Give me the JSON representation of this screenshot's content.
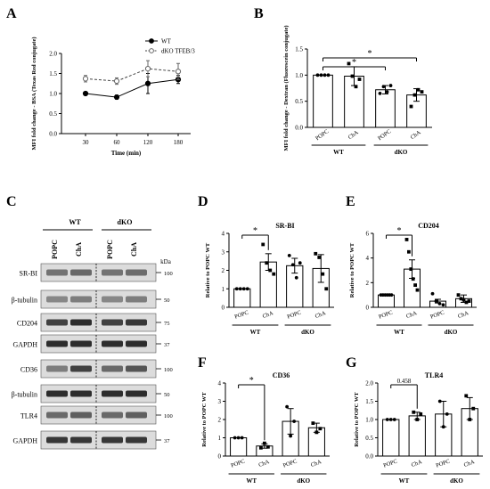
{
  "panel_letters": {
    "A": "A",
    "B": "B",
    "C": "C",
    "D": "D",
    "E": "E",
    "F": "F",
    "G": "G"
  },
  "blot": {
    "groups": [
      "WT",
      "dKO"
    ],
    "lanes": [
      "POPC",
      "ChA",
      "POPC",
      "ChA"
    ],
    "kda_label": "kDa",
    "rows": [
      {
        "label": "SR-BI",
        "kda": "100",
        "intensity": [
          0.55,
          0.6,
          0.55,
          0.58
        ]
      },
      {
        "label": "β-tubulin",
        "kda": "50",
        "intensity": [
          0.45,
          0.5,
          0.45,
          0.5
        ]
      },
      {
        "label": "CD204",
        "kda": "75",
        "intensity": [
          0.8,
          0.9,
          0.8,
          0.85
        ]
      },
      {
        "label": "GAPDH",
        "kda": "37",
        "intensity": [
          0.9,
          0.9,
          0.9,
          0.9
        ]
      },
      {
        "label": "CD36",
        "kda": "100",
        "intensity": [
          0.5,
          0.8,
          0.6,
          0.7
        ]
      },
      {
        "label": "β-tubulin",
        "kda": "50",
        "intensity": [
          0.9,
          0.9,
          0.9,
          0.9
        ]
      },
      {
        "label": "TLR4",
        "kda": "100",
        "intensity": [
          0.6,
          0.65,
          0.6,
          0.65
        ]
      },
      {
        "label": "GAPDH",
        "kda": "37",
        "intensity": [
          0.85,
          0.85,
          0.85,
          0.85
        ]
      }
    ]
  },
  "chart_data": [
    {
      "panel": "A",
      "type": "line",
      "xlabel": "Time (min)",
      "ylabel": "MFI fold change - BSA (Texas Red conjugate)",
      "x": [
        30,
        60,
        120,
        180
      ],
      "ylim": [
        0.0,
        2.0
      ],
      "yticks": [
        "0.0",
        "0.5",
        "1.0",
        "1.5",
        "2.0"
      ],
      "series": [
        {
          "name": "WT",
          "values": [
            1.0,
            0.91,
            1.25,
            1.35
          ],
          "err": [
            0.03,
            0.05,
            0.25,
            0.1
          ],
          "style": "solid",
          "marker": "filled"
        },
        {
          "name": "dKO TFEB/3",
          "values": [
            1.37,
            1.31,
            1.62,
            1.55
          ],
          "err": [
            0.08,
            0.08,
            0.2,
            0.2
          ],
          "style": "dashed",
          "marker": "open"
        }
      ],
      "legend": "top-right"
    },
    {
      "panel": "B",
      "type": "bar",
      "ylabel": "MFI fold change - Dextran (Fluorescein conjugate)",
      "categories": [
        "POPC",
        "ChA",
        "POPC",
        "ChA"
      ],
      "groups": [
        "WT",
        "dKO"
      ],
      "values": [
        1.0,
        0.98,
        0.72,
        0.62
      ],
      "err": [
        0.0,
        0.18,
        0.08,
        0.12
      ],
      "points": [
        [
          1.0,
          1.0,
          1.0,
          1.0
        ],
        [
          1.22,
          0.98,
          0.78,
          0.92
        ],
        [
          0.65,
          0.78,
          0.68,
          0.8
        ],
        [
          0.4,
          0.62,
          0.72,
          0.68
        ]
      ],
      "ylim": [
        0.0,
        1.5
      ],
      "yticks": [
        "0.0",
        "0.5",
        "1.0",
        "1.5"
      ],
      "significance": [
        {
          "from": 0,
          "to": 3,
          "label": "*"
        },
        {
          "from": 0,
          "to": 2,
          "label": "*"
        }
      ]
    },
    {
      "panel": "D",
      "type": "bar",
      "title": "SR-BI",
      "ylabel": "Relative to POPC WT",
      "categories": [
        "POPC",
        "ChA",
        "POPC",
        "ChA"
      ],
      "groups": [
        "WT",
        "dKO"
      ],
      "values": [
        1.0,
        2.45,
        2.25,
        2.1
      ],
      "err": [
        0.0,
        0.45,
        0.4,
        0.75
      ],
      "points": [
        [
          1.0,
          1.0,
          1.0,
          1.0
        ],
        [
          3.4,
          2.4,
          2.0,
          1.8
        ],
        [
          2.8,
          2.3,
          1.6,
          2.4
        ],
        [
          2.9,
          2.7,
          1.8,
          1.0
        ]
      ],
      "ylim": [
        0,
        4
      ],
      "yticks": [
        "0",
        "1",
        "2",
        "3",
        "4"
      ],
      "significance": [
        {
          "from": 0,
          "to": 1,
          "label": "*"
        }
      ]
    },
    {
      "panel": "E",
      "type": "bar",
      "title": "CD204",
      "ylabel": "Relative to POPC WT",
      "categories": [
        "POPC",
        "ChA",
        "POPC",
        "ChA"
      ],
      "groups": [
        "WT",
        "dKO"
      ],
      "values": [
        1.0,
        3.1,
        0.5,
        0.7
      ],
      "err": [
        0.0,
        0.75,
        0.15,
        0.3
      ],
      "points": [
        [
          1.0,
          1.0,
          1.0,
          1.0,
          1.0,
          1.0
        ],
        [
          5.5,
          4.5,
          3.1,
          2.3,
          1.8,
          1.4
        ],
        [
          1.1,
          0.5,
          0.3,
          0.2
        ],
        [
          1.0,
          0.7,
          0.6,
          0.4,
          0.5
        ]
      ],
      "ylim": [
        0,
        6
      ],
      "yticks": [
        "0",
        "2",
        "4",
        "6"
      ],
      "significance": [
        {
          "from": 0,
          "to": 1,
          "label": "*"
        }
      ]
    },
    {
      "panel": "F",
      "type": "bar",
      "title": "CD36",
      "ylabel": "Relative to POPC WT",
      "categories": [
        "POPC",
        "ChA",
        "POPC",
        "ChA"
      ],
      "groups": [
        "WT",
        "dKO"
      ],
      "values": [
        1.0,
        0.55,
        1.9,
        1.55
      ],
      "err": [
        0.0,
        0.12,
        0.7,
        0.25
      ],
      "points": [
        [
          1.0,
          1.0,
          1.0
        ],
        [
          0.45,
          0.7,
          0.5
        ],
        [
          2.7,
          1.1,
          1.9
        ],
        [
          1.8,
          1.3,
          1.5
        ]
      ],
      "ylim": [
        0,
        4
      ],
      "yticks": [
        "0",
        "1",
        "2",
        "3",
        "4"
      ],
      "significance": [
        {
          "from": 0,
          "to": 1,
          "label": "*"
        }
      ]
    },
    {
      "panel": "G",
      "type": "bar",
      "title": "TLR4",
      "ylabel": "Relative to POPC WT",
      "categories": [
        "POPC",
        "ChA",
        "POPC",
        "ChA"
      ],
      "groups": [
        "WT",
        "dKO"
      ],
      "values": [
        1.0,
        1.1,
        1.15,
        1.3
      ],
      "err": [
        0.0,
        0.1,
        0.35,
        0.3
      ],
      "points": [
        [
          1.0,
          1.0,
          1.0
        ],
        [
          1.2,
          1.0,
          1.15
        ],
        [
          1.5,
          0.8,
          1.15
        ],
        [
          1.65,
          1.0,
          1.3
        ]
      ],
      "ylim": [
        0.0,
        2.0
      ],
      "yticks": [
        "0.0",
        "0.5",
        "1.0",
        "1.5",
        "2.0"
      ],
      "significance": [
        {
          "from": 0,
          "to": 1,
          "label": "0.458"
        }
      ]
    }
  ]
}
